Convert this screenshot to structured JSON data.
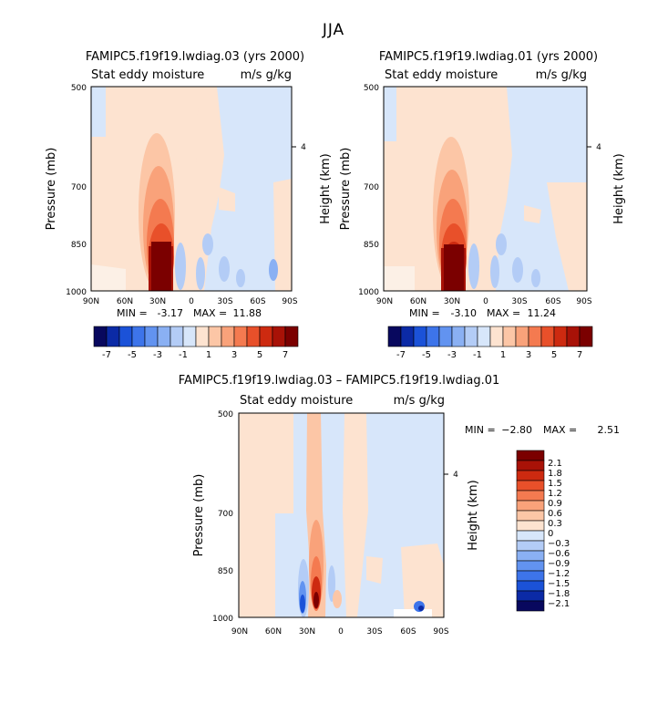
{
  "page_title": "JJA",
  "chart_data": [
    {
      "type": "heatmap",
      "title": "FAMIPC5.f19f19.lwdiag.03 (yrs 2000)",
      "variable": "Stat eddy moisture",
      "units": "m/s g/kg",
      "ylabel": "Pressure (mb)",
      "ylabel_right": "Height (km)",
      "right_ticks": [
        "4"
      ],
      "x_ticks": [
        "90N",
        "60N",
        "30N",
        "0",
        "30S",
        "60S",
        "90S"
      ],
      "y_ticks": [
        "500",
        "700",
        "850",
        "1000"
      ],
      "min_label": "MIN =",
      "min_value": "-3.17",
      "max_label": "MAX =",
      "max_value": "11.88",
      "colorbar_labels": [
        "-7",
        "-5",
        "-3",
        "-1",
        "1",
        "3",
        "5",
        "7"
      ],
      "colorbar_colors": [
        "#08085e",
        "#0b2aa6",
        "#1b52d8",
        "#3d74ea",
        "#6293f0",
        "#8ab0f3",
        "#b3ccf6",
        "#d7e6fa",
        "#fde3d0",
        "#fcc6a6",
        "#f9a27a",
        "#f47a50",
        "#e8502a",
        "#cd2a10",
        "#a81207",
        "#7b0000"
      ]
    },
    {
      "type": "heatmap",
      "title": "FAMIPC5.f19f19.lwdiag.01 (yrs 2000)",
      "variable": "Stat eddy moisture",
      "units": "m/s g/kg",
      "ylabel": "Pressure (mb)",
      "ylabel_right": "Height (km)",
      "right_ticks": [
        "4"
      ],
      "x_ticks": [
        "90N",
        "60N",
        "30N",
        "0",
        "30S",
        "60S",
        "90S"
      ],
      "y_ticks": [
        "500",
        "700",
        "850",
        "1000"
      ],
      "min_label": "MIN =",
      "min_value": "-3.10",
      "max_label": "MAX =",
      "max_value": "11.24",
      "colorbar_labels": [
        "-7",
        "-5",
        "-3",
        "-1",
        "1",
        "3",
        "5",
        "7"
      ],
      "colorbar_colors": [
        "#08085e",
        "#0b2aa6",
        "#1b52d8",
        "#3d74ea",
        "#6293f0",
        "#8ab0f3",
        "#b3ccf6",
        "#d7e6fa",
        "#fde3d0",
        "#fcc6a6",
        "#f9a27a",
        "#f47a50",
        "#e8502a",
        "#cd2a10",
        "#a81207",
        "#7b0000"
      ]
    },
    {
      "type": "heatmap",
      "title": "FAMIPC5.f19f19.lwdiag.03 – FAMIPC5.f19f19.lwdiag.01",
      "variable": "Stat eddy moisture",
      "units": "m/s g/kg",
      "ylabel": "Pressure (mb)",
      "ylabel_right": "Height (km)",
      "right_ticks": [
        "4"
      ],
      "x_ticks": [
        "90N",
        "60N",
        "30N",
        "0",
        "30S",
        "60S",
        "90S"
      ],
      "y_ticks": [
        "500",
        "700",
        "850",
        "1000"
      ],
      "min_label": "MIN =",
      "min_value": "−2.80",
      "max_label": "MAX =",
      "max_value": "2.51",
      "colorbar_labels": [
        "2.1",
        "1.8",
        "1.5",
        "1.2",
        "0.9",
        "0.6",
        "0.3",
        "0",
        "−0.3",
        "−0.6",
        "−0.9",
        "−1.2",
        "−1.5",
        "−1.8",
        "−2.1"
      ],
      "colorbar_colors": [
        "#7b0000",
        "#a81207",
        "#cd2a10",
        "#e8502a",
        "#f47a50",
        "#f9a27a",
        "#fcc6a6",
        "#fde3d0",
        "#d7e6fa",
        "#b3ccf6",
        "#8ab0f3",
        "#6293f0",
        "#3d74ea",
        "#1b52d8",
        "#0b2aa6",
        "#08085e"
      ]
    }
  ]
}
